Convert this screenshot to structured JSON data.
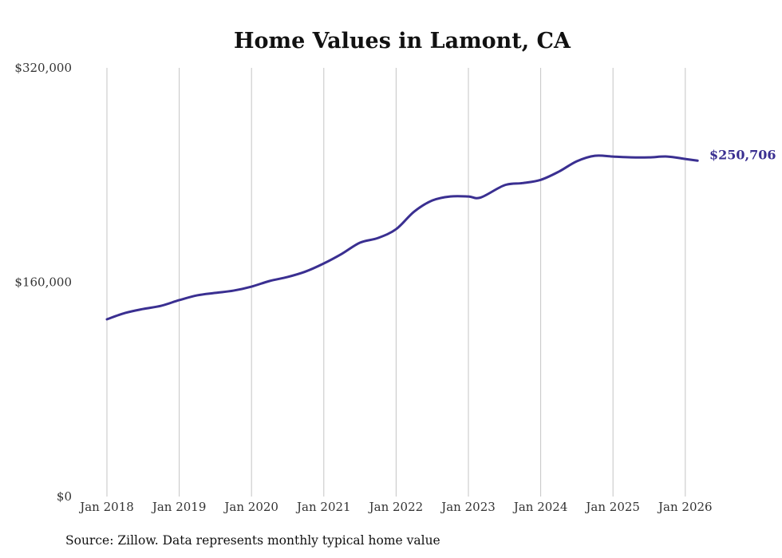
{
  "chart_data": {
    "type": "line",
    "title": "Home Values in Lamont, CA",
    "xlabel": "",
    "ylabel": "",
    "ylim": [
      0,
      320000
    ],
    "xlim": [
      2018.0,
      2026.17
    ],
    "y_ticks": [
      {
        "value": 0,
        "label": "$0"
      },
      {
        "value": 160000,
        "label": "$160,000"
      },
      {
        "value": 320000,
        "label": "$320,000"
      }
    ],
    "x_ticks": [
      {
        "value": 2018,
        "label": "Jan 2018"
      },
      {
        "value": 2019,
        "label": "Jan 2019"
      },
      {
        "value": 2020,
        "label": "Jan 2020"
      },
      {
        "value": 2021,
        "label": "Jan 2021"
      },
      {
        "value": 2022,
        "label": "Jan 2022"
      },
      {
        "value": 2023,
        "label": "Jan 2023"
      },
      {
        "value": 2024,
        "label": "Jan 2024"
      },
      {
        "value": 2025,
        "label": "Jan 2025"
      },
      {
        "value": 2026,
        "label": "Jan 2026"
      }
    ],
    "grid": "vertical",
    "line_color": "#3a2f91",
    "series": [
      {
        "name": "Typical home value",
        "x": [
          2018.0,
          2018.25,
          2018.5,
          2018.75,
          2019.0,
          2019.25,
          2019.5,
          2019.75,
          2020.0,
          2020.25,
          2020.5,
          2020.75,
          2021.0,
          2021.25,
          2021.5,
          2021.75,
          2022.0,
          2022.25,
          2022.5,
          2022.75,
          2023.0,
          2023.17,
          2023.5,
          2023.75,
          2024.0,
          2024.25,
          2024.5,
          2024.75,
          2025.0,
          2025.25,
          2025.5,
          2025.75,
          2026.0,
          2026.17
        ],
        "values": [
          132300,
          137000,
          140000,
          142400,
          146600,
          150200,
          152000,
          153700,
          156700,
          160900,
          163900,
          168000,
          174000,
          181200,
          189500,
          193000,
          199600,
          212700,
          221000,
          224000,
          224000,
          223200,
          232400,
          234000,
          236400,
          242500,
          250300,
          254400,
          253800,
          253200,
          253200,
          253800,
          252000,
          250706
        ]
      }
    ],
    "end_label": "$250,706"
  },
  "source": "Source: Zillow. Data represents monthly typical home value"
}
